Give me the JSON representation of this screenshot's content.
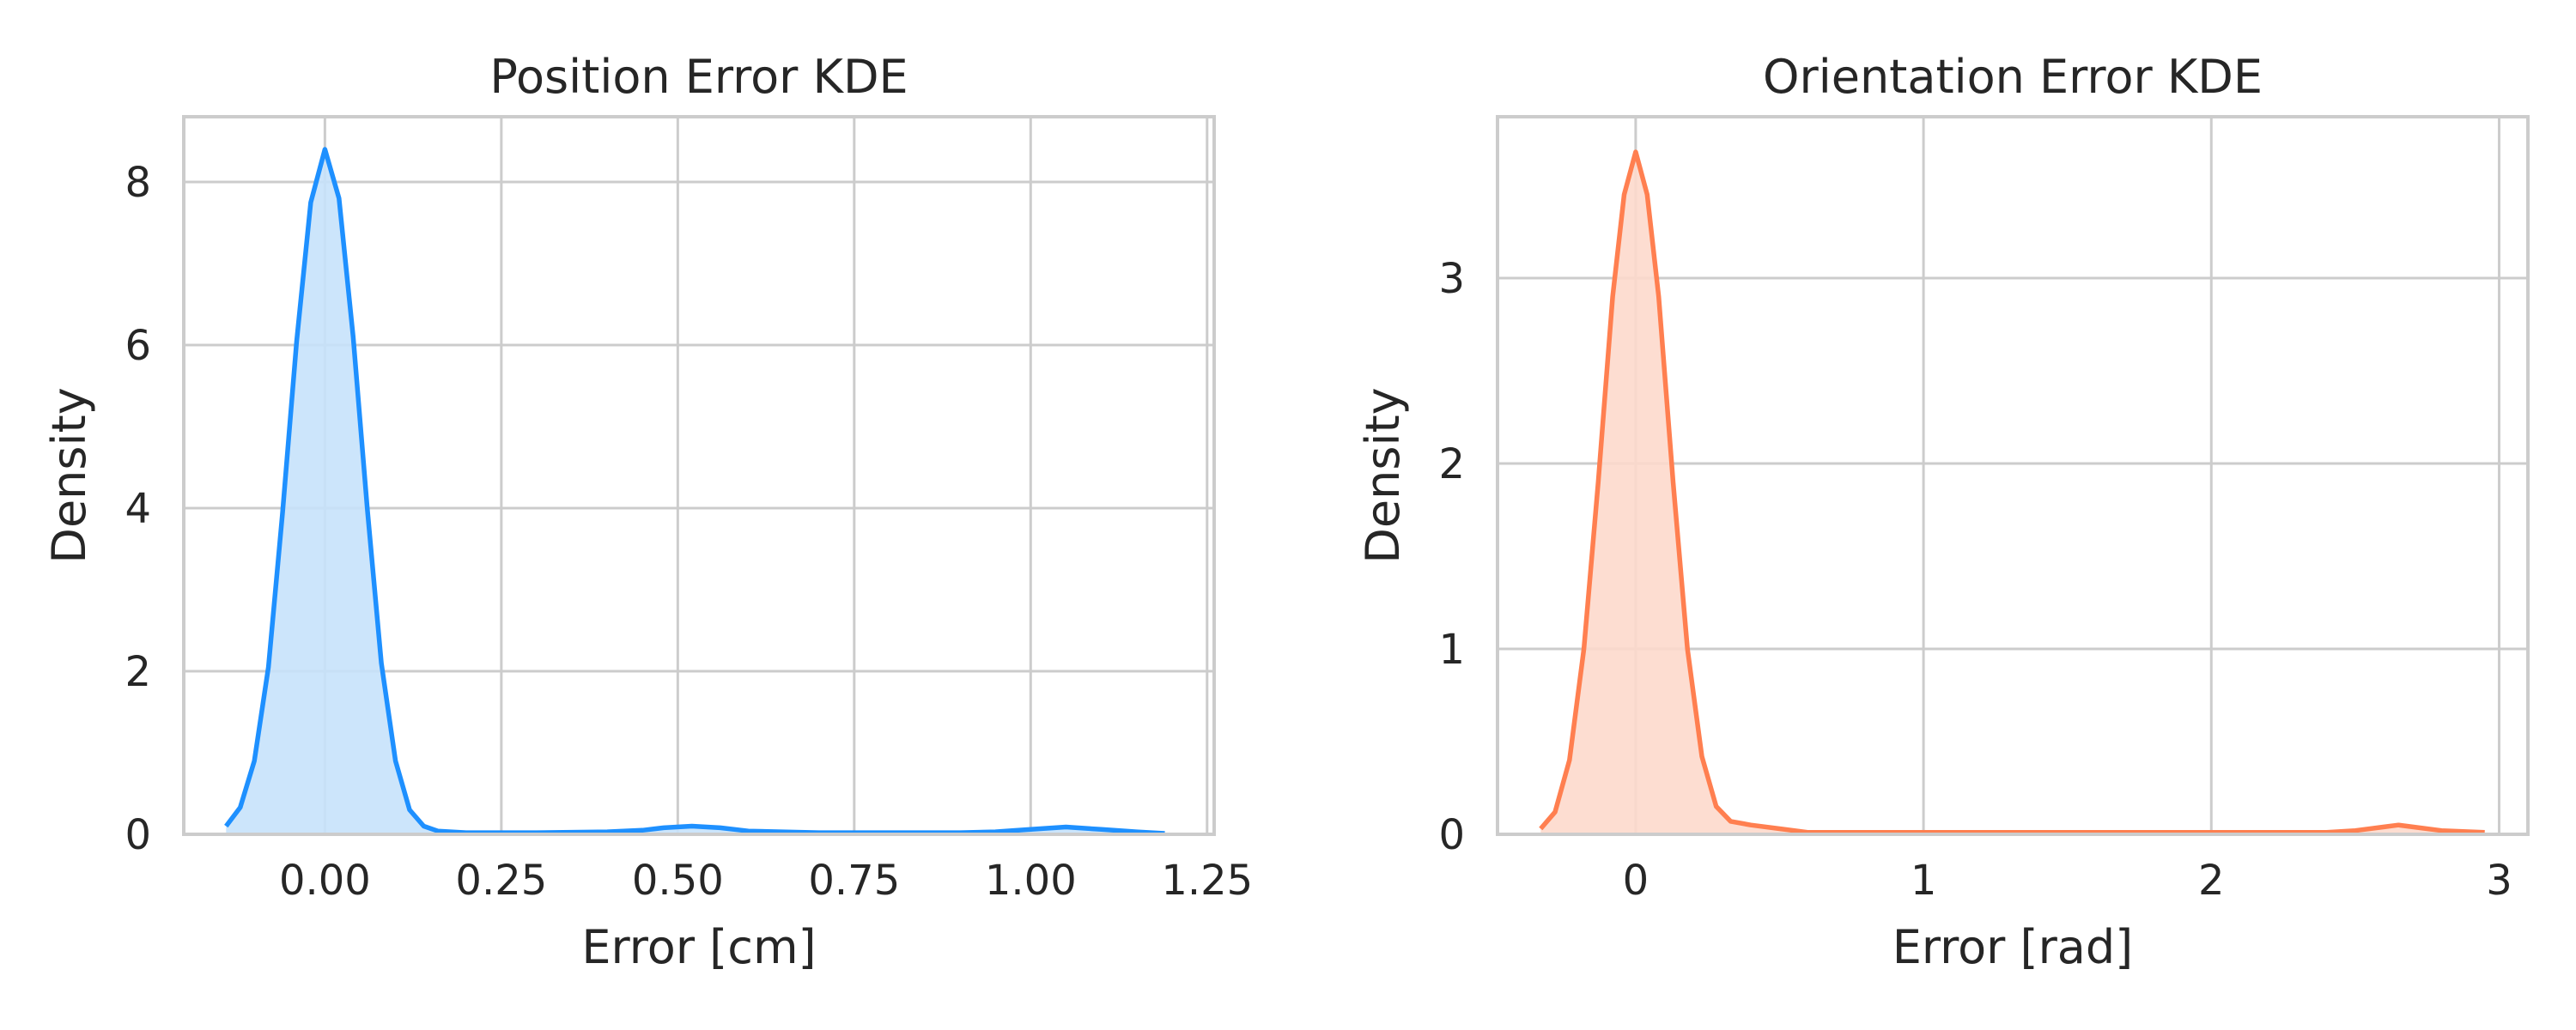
{
  "chart_data": [
    {
      "type": "area",
      "title": "Position Error KDE",
      "xlabel": "Error [cm]",
      "ylabel": "Density",
      "xlim": [
        -0.2,
        1.26
      ],
      "ylim": [
        0,
        8.8
      ],
      "xticks": [
        0.0,
        0.25,
        0.5,
        0.75,
        1.0,
        1.25
      ],
      "xtick_labels": [
        "0.00",
        "0.25",
        "0.50",
        "0.75",
        "1.00",
        "1.25"
      ],
      "yticks": [
        0,
        2,
        4,
        6,
        8
      ],
      "ytick_labels": [
        "0",
        "2",
        "4",
        "6",
        "8"
      ],
      "grid": true,
      "color": "#1e90ff",
      "fill_color": "#c6e2fb",
      "series": [
        {
          "x": [
            -0.14,
            -0.12,
            -0.1,
            -0.08,
            -0.06,
            -0.04,
            -0.02,
            0.0,
            0.02,
            0.04,
            0.06,
            0.08,
            0.1,
            0.12,
            0.14,
            0.16,
            0.2,
            0.3,
            0.4,
            0.45,
            0.48,
            0.52,
            0.56,
            0.6,
            0.7,
            0.8,
            0.9,
            0.95,
            1.0,
            1.05,
            1.1,
            1.15,
            1.19
          ],
          "y": [
            0.1,
            0.33,
            0.9,
            2.05,
            3.95,
            6.05,
            7.75,
            8.4,
            7.8,
            6.1,
            4.0,
            2.1,
            0.9,
            0.3,
            0.1,
            0.04,
            0.02,
            0.02,
            0.03,
            0.05,
            0.08,
            0.1,
            0.08,
            0.04,
            0.02,
            0.02,
            0.02,
            0.03,
            0.06,
            0.09,
            0.06,
            0.03,
            0.01
          ]
        }
      ]
    },
    {
      "type": "area",
      "title": "Orientation Error KDE",
      "xlabel": "Error [rad]",
      "ylabel": "Density",
      "xlim": [
        -0.48,
        3.1
      ],
      "ylim": [
        0,
        3.87
      ],
      "xticks": [
        0,
        1,
        2,
        3
      ],
      "xtick_labels": [
        "0",
        "1",
        "2",
        "3"
      ],
      "yticks": [
        0,
        1,
        2,
        3
      ],
      "ytick_labels": [
        "0",
        "1",
        "2",
        "3"
      ],
      "grid": true,
      "color": "#ff7f50",
      "fill_color": "#fdd9cc",
      "series": [
        {
          "x": [
            -0.33,
            -0.28,
            -0.23,
            -0.18,
            -0.13,
            -0.08,
            -0.04,
            0.0,
            0.04,
            0.08,
            0.13,
            0.18,
            0.23,
            0.28,
            0.33,
            0.4,
            0.5,
            0.6,
            0.8,
            1.2,
            1.6,
            2.0,
            2.4,
            2.5,
            2.6,
            2.65,
            2.7,
            2.8,
            2.95
          ],
          "y": [
            0.03,
            0.12,
            0.4,
            1.0,
            1.9,
            2.9,
            3.45,
            3.68,
            3.45,
            2.9,
            1.9,
            1.0,
            0.42,
            0.15,
            0.07,
            0.05,
            0.03,
            0.01,
            0.01,
            0.01,
            0.01,
            0.01,
            0.01,
            0.02,
            0.04,
            0.05,
            0.04,
            0.02,
            0.01
          ]
        }
      ]
    }
  ]
}
